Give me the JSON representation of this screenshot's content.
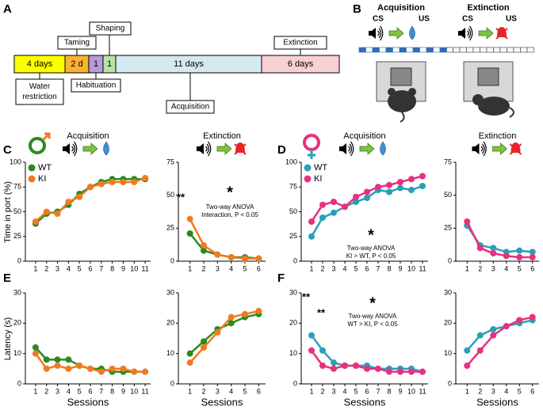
{
  "panel_a": {
    "label": "A",
    "segments": [
      "4 days",
      "2 d",
      "1",
      "1",
      "11 days",
      "6 days"
    ],
    "callouts": [
      "Taming",
      "Shaping",
      "Water restriction",
      "Habituation",
      "Acquisition",
      "Extinction"
    ]
  },
  "panel_b": {
    "label": "B",
    "acquisition": {
      "title": "Acquisition",
      "cs": "CS",
      "us": "US"
    },
    "extinction": {
      "title": "Extinction",
      "cs": "CS",
      "us": "US"
    }
  },
  "charts": [
    {
      "type": "line",
      "panel": "C",
      "title": "Acquisition",
      "ylabel": "Time in port (%)",
      "legend": "upper left",
      "x": [
        1,
        2,
        3,
        4,
        5,
        6,
        7,
        8,
        9,
        10,
        11
      ],
      "xlim": [
        0.5,
        11.5
      ],
      "ylim": [
        0,
        100
      ],
      "yticks": [
        0,
        25,
        50,
        75,
        100
      ],
      "series": [
        {
          "name": "WT",
          "color": "#2b8a1f",
          "values": [
            38,
            48,
            50,
            57,
            68,
            75,
            80,
            83,
            83,
            83,
            83
          ]
        },
        {
          "name": "KI",
          "color": "#f07a22",
          "values": [
            40,
            50,
            48,
            60,
            65,
            75,
            78,
            80,
            80,
            80,
            84
          ]
        }
      ]
    },
    {
      "type": "line",
      "title": "Extinction",
      "x": [
        1,
        2,
        3,
        4,
        5,
        6
      ],
      "xlim": [
        0.5,
        6.5
      ],
      "ylim": [
        0,
        75
      ],
      "yticks": [
        0,
        25,
        50,
        75
      ],
      "annotations": [
        "**",
        "*",
        "Two-way ANOVA",
        "Interaction, P < 0.05"
      ],
      "series": [
        {
          "name": "WT",
          "color": "#2b8a1f",
          "values": [
            21,
            8,
            5,
            3,
            3,
            2
          ]
        },
        {
          "name": "KI",
          "color": "#f07a22",
          "values": [
            32,
            12,
            5,
            3,
            2,
            2
          ]
        }
      ]
    },
    {
      "type": "line",
      "panel": "D",
      "title": "Acquisition",
      "legend": "upper left",
      "x": [
        1,
        2,
        3,
        4,
        5,
        6,
        7,
        8,
        9,
        10,
        11
      ],
      "xlim": [
        0.5,
        11.5
      ],
      "ylim": [
        0,
        100
      ],
      "yticks": [
        0,
        25,
        50,
        75,
        100
      ],
      "annotations": [
        "*",
        "Two-way ANOVA",
        "KI > WT, P < 0.05"
      ],
      "series": [
        {
          "name": "WT",
          "color": "#2a9fb6",
          "values": [
            25,
            44,
            49,
            55,
            60,
            64,
            72,
            70,
            74,
            72,
            76
          ]
        },
        {
          "name": "KI",
          "color": "#e8307f",
          "values": [
            40,
            57,
            60,
            55,
            65,
            70,
            75,
            77,
            80,
            83,
            86
          ]
        }
      ]
    },
    {
      "type": "line",
      "title": "Extinction",
      "x": [
        1,
        2,
        3,
        4,
        5,
        6
      ],
      "xlim": [
        0.5,
        6.5
      ],
      "ylim": [
        0,
        75
      ],
      "yticks": [
        0,
        25,
        50,
        75
      ],
      "series": [
        {
          "name": "WT",
          "color": "#2a9fb6",
          "values": [
            27,
            12,
            10,
            7,
            8,
            7
          ]
        },
        {
          "name": "KI",
          "color": "#e8307f",
          "values": [
            30,
            10,
            6,
            4,
            3,
            3
          ]
        }
      ]
    },
    {
      "type": "line",
      "panel": "E",
      "ylabel": "Latency (s)",
      "xlabel": "Sessions",
      "x": [
        1,
        2,
        3,
        4,
        5,
        6,
        7,
        8,
        9,
        10,
        11
      ],
      "xlim": [
        0.5,
        11.5
      ],
      "ylim": [
        0,
        30
      ],
      "yticks": [
        0,
        10,
        20,
        30
      ],
      "series": [
        {
          "name": "WT",
          "color": "#2b8a1f",
          "values": [
            12,
            8,
            8,
            8,
            6,
            5,
            5,
            4,
            4,
            4,
            4
          ]
        },
        {
          "name": "KI",
          "color": "#f07a22",
          "values": [
            10,
            5,
            6,
            5,
            6,
            5,
            4,
            5,
            5,
            4,
            4
          ]
        }
      ]
    },
    {
      "type": "line",
      "xlabel": "Sessions",
      "x": [
        1,
        2,
        3,
        4,
        5,
        6
      ],
      "xlim": [
        0.5,
        6.5
      ],
      "ylim": [
        0,
        30
      ],
      "yticks": [
        0,
        10,
        20,
        30
      ],
      "series": [
        {
          "name": "WT",
          "color": "#2b8a1f",
          "values": [
            10,
            14,
            18,
            20,
            22,
            23
          ]
        },
        {
          "name": "KI",
          "color": "#f07a22",
          "values": [
            7,
            12,
            17,
            22,
            23,
            24
          ]
        }
      ]
    },
    {
      "type": "line",
      "panel": "F",
      "xlabel": "Sessions",
      "x": [
        1,
        2,
        3,
        4,
        5,
        6,
        7,
        8,
        9,
        10,
        11
      ],
      "xlim": [
        0.5,
        11.5
      ],
      "ylim": [
        0,
        30
      ],
      "yticks": [
        0,
        10,
        20,
        30
      ],
      "annotations": [
        "**",
        "**",
        "*",
        "Two-way ANOVA",
        "WT > KI, P < 0.05"
      ],
      "series": [
        {
          "name": "WT",
          "color": "#2a9fb6",
          "values": [
            16,
            11,
            7,
            6,
            6,
            6,
            5,
            5,
            5,
            5,
            4
          ]
        },
        {
          "name": "KI",
          "color": "#e8307f",
          "values": [
            11,
            6,
            5,
            6,
            6,
            5,
            5,
            4,
            4,
            4,
            4
          ]
        }
      ]
    },
    {
      "type": "line",
      "xlabel": "Sessions",
      "x": [
        1,
        2,
        3,
        4,
        5,
        6
      ],
      "xlim": [
        0.5,
        6.5
      ],
      "ylim": [
        0,
        30
      ],
      "yticks": [
        0,
        10,
        20,
        30
      ],
      "series": [
        {
          "name": "WT",
          "color": "#2a9fb6",
          "values": [
            11,
            16,
            18,
            19,
            20,
            21
          ]
        },
        {
          "name": "KI",
          "color": "#e8307f",
          "values": [
            6,
            11,
            16,
            19,
            21,
            22
          ]
        }
      ]
    }
  ]
}
